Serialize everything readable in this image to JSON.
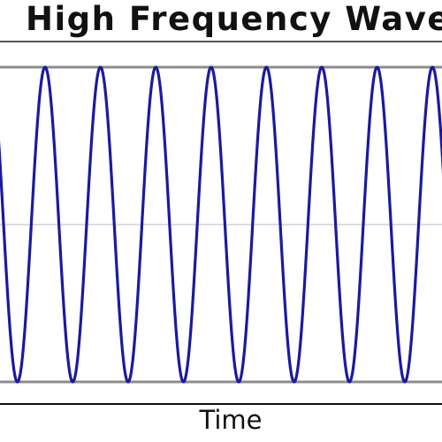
{
  "chart_data": {
    "type": "line",
    "title": "High Frequency Wave",
    "xlabel": "Time",
    "ylabel": "",
    "grid": true,
    "series": [
      {
        "color": "#1a1aa0",
        "x": [
          0,
          0.25,
          0.5,
          0.75,
          1,
          1.25,
          1.5,
          1.75,
          2,
          2.25,
          2.5,
          2.75,
          3,
          3.25,
          3.5,
          3.75,
          4,
          4.25,
          4.5,
          4.75,
          5,
          5.25,
          5.5,
          5.75,
          6,
          6.25,
          6.5,
          6.75,
          7,
          7.25,
          7.5,
          7.75,
          8,
          8.25
        ],
        "values": [
          0.5,
          0,
          -1,
          0,
          1,
          0,
          -1,
          0,
          1,
          0,
          -1,
          0,
          1,
          0,
          -1,
          0,
          1,
          0,
          -1,
          0,
          1,
          0,
          -1,
          0,
          1,
          0,
          -1,
          0,
          1,
          0,
          -1,
          0,
          1,
          0
        ]
      }
    ],
    "ylim": [
      -1,
      1
    ]
  },
  "colors": {
    "line": "#1a1aa0",
    "frame": "#8c8c8c",
    "midline": "#c8c8d8",
    "axis": "#111111"
  }
}
